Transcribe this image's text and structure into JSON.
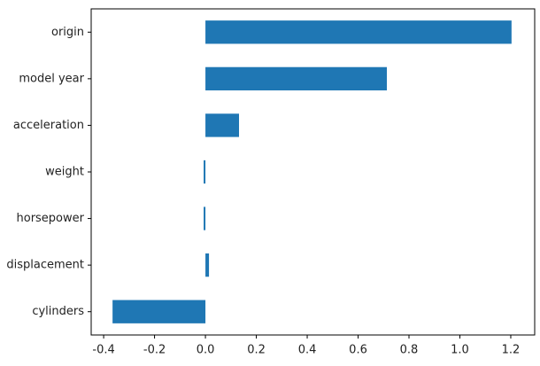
{
  "chart_data": {
    "type": "barh",
    "categories": [
      "cylinders",
      "displacement",
      "horsepower",
      "weight",
      "acceleration",
      "model year",
      "origin"
    ],
    "values": [
      -0.365,
      0.014,
      -0.007,
      -0.007,
      0.132,
      0.713,
      1.203
    ],
    "color": "#1f77b4",
    "xlim": [
      -0.449,
      1.294
    ],
    "xticks": [
      -0.4,
      -0.2,
      {
        "value": 0,
        "label": "0.0"
      },
      0.2,
      0.4,
      0.6,
      0.8,
      {
        "value": 1,
        "label": "1.0"
      },
      1.2
    ],
    "grid": false
  }
}
